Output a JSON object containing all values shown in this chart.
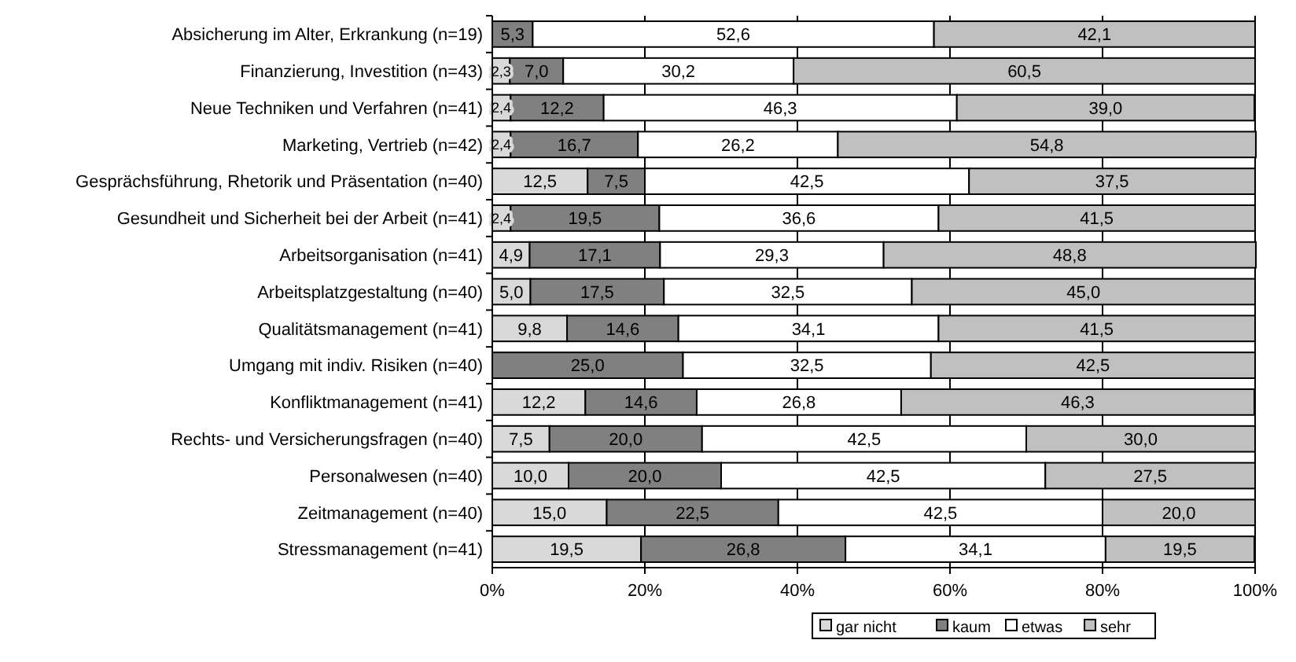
{
  "chart_data": {
    "type": "bar",
    "orientation": "horizontal",
    "stacked": true,
    "categories": [
      "Absicherung im Alter, Erkrankung (n=19)",
      "Finanzierung, Investition (n=43)",
      "Neue Techniken und Verfahren (n=41)",
      "Marketing, Vertrieb (n=42)",
      "Gesprächsführung, Rhetorik und Präsentation (n=40)",
      "Gesundheit und Sicherheit bei der Arbeit (n=41)",
      "Arbeitsorganisation (n=41)",
      "Arbeitsplatzgestaltung (n=40)",
      "Qualitätsmanagement (n=41)",
      "Umgang mit indiv. Risiken (n=40)",
      "Konfliktmanagement (n=41)",
      "Rechts- und Versicherungsfragen (n=40)",
      "Personalwesen (n=40)",
      "Zeitmanagement (n=40)",
      "Stressmanagement (n=41)"
    ],
    "series": [
      {
        "name": "gar nicht",
        "color": "#d9d9d9",
        "values": [
          0,
          2.3,
          2.4,
          2.4,
          12.5,
          2.4,
          4.9,
          5.0,
          9.8,
          0,
          12.2,
          7.5,
          10.0,
          15.0,
          19.5
        ],
        "value_labels": [
          null,
          "2,3",
          "2,4",
          "2,4",
          "12,5",
          "2,4",
          "4,9",
          "5,0",
          "9,8",
          null,
          "12,2",
          "7,5",
          "10,0",
          "15,0",
          "19,5"
        ]
      },
      {
        "name": "kaum",
        "color": "#808080",
        "values": [
          5.3,
          7.0,
          12.2,
          16.7,
          7.5,
          19.5,
          17.1,
          17.5,
          14.6,
          25.0,
          14.6,
          20.0,
          20.0,
          22.5,
          26.8
        ],
        "value_labels": [
          "5,3",
          "7,0",
          "12,2",
          "16,7",
          "7,5",
          "19,5",
          "17,1",
          "17,5",
          "14,6",
          "25,0",
          "14,6",
          "20,0",
          "20,0",
          "22,5",
          "26,8"
        ]
      },
      {
        "name": "etwas",
        "color": "#ffffff",
        "values": [
          52.6,
          30.2,
          46.3,
          26.2,
          42.5,
          36.6,
          29.3,
          32.5,
          34.1,
          32.5,
          26.8,
          42.5,
          42.5,
          42.5,
          34.1
        ],
        "value_labels": [
          "52,6",
          "30,2",
          "46,3",
          "26,2",
          "42,5",
          "36,6",
          "29,3",
          "32,5",
          "34,1",
          "32,5",
          "26,8",
          "42,5",
          "42,5",
          "42,5",
          "34,1"
        ]
      },
      {
        "name": "sehr",
        "color": "#c0c0c0",
        "values": [
          42.1,
          60.5,
          39.0,
          54.8,
          37.5,
          41.5,
          48.8,
          45.0,
          41.5,
          42.5,
          46.3,
          30.0,
          27.5,
          20.0,
          19.5
        ],
        "value_labels": [
          "42,1",
          "60,5",
          "39,0",
          "54,8",
          "37,5",
          "41,5",
          "48,8",
          "45,0",
          "41,5",
          "42,5",
          "46,3",
          "30,0",
          "27,5",
          "20,0",
          "19,5"
        ]
      }
    ],
    "xlim": [
      0,
      100
    ],
    "xticks": [
      {
        "value": 0,
        "label": "0%"
      },
      {
        "value": 20,
        "label": "20%"
      },
      {
        "value": 40,
        "label": "40%"
      },
      {
        "value": 60,
        "label": "60%"
      },
      {
        "value": 80,
        "label": "80%"
      },
      {
        "value": 100,
        "label": "100%"
      }
    ],
    "grid": "x",
    "legend": "bottom"
  }
}
